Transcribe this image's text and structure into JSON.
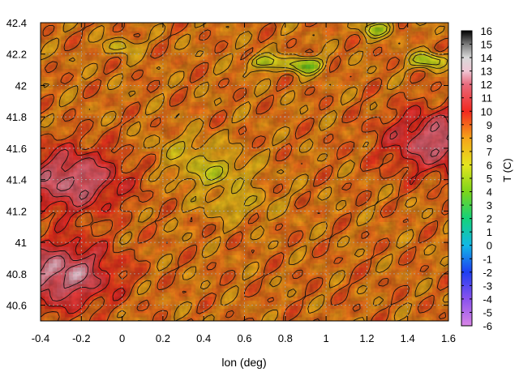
{
  "chart_data": {
    "type": "heatmap",
    "title": "",
    "xlabel": "lon (deg)",
    "ylabel": "",
    "xlim": [
      -0.4,
      1.6
    ],
    "ylim": [
      40.5,
      42.4
    ],
    "x_ticks": [
      "-0.4",
      "-0.2",
      "0",
      "0.2",
      "0.4",
      "0.6",
      "0.8",
      "1",
      "1.2",
      "1.4",
      "1.6"
    ],
    "x_tick_values": [
      -0.4,
      -0.2,
      0,
      0.2,
      0.4,
      0.6,
      0.8,
      1.0,
      1.2,
      1.4,
      1.6
    ],
    "y_ticks": [
      "40.6",
      "40.8",
      "41",
      "41.2",
      "41.4",
      "41.6",
      "41.8",
      "42",
      "42.2",
      "42.4"
    ],
    "y_tick_values": [
      40.6,
      40.8,
      41.0,
      41.2,
      41.4,
      41.6,
      41.8,
      42.0,
      42.2,
      42.4
    ],
    "grid": true,
    "colorbar": {
      "label": "T (C)",
      "range": [
        -6,
        16
      ],
      "ticks": [
        "16",
        "15",
        "14",
        "13",
        "12",
        "11",
        "10",
        "9",
        "8",
        "7",
        "6",
        "5",
        "4",
        "3",
        "2",
        "1",
        "0",
        "-1",
        "-2",
        "-3",
        "-4",
        "-5",
        "-6"
      ],
      "tick_values": [
        16,
        15,
        14,
        13,
        12,
        11,
        10,
        9,
        8,
        7,
        6,
        5,
        4,
        3,
        2,
        1,
        0,
        -1,
        -2,
        -3,
        -4,
        -5,
        -6
      ],
      "colors": [
        {
          "value": -6,
          "color": "#d985e6"
        },
        {
          "value": -4,
          "color": "#8a52ee"
        },
        {
          "value": -2,
          "color": "#1e3ef2"
        },
        {
          "value": 0,
          "color": "#12b8e6"
        },
        {
          "value": 2,
          "color": "#14d27a"
        },
        {
          "value": 4,
          "color": "#7cd51a"
        },
        {
          "value": 6,
          "color": "#e5e51e"
        },
        {
          "value": 8,
          "color": "#f6a319"
        },
        {
          "value": 10,
          "color": "#f2281f"
        },
        {
          "value": 12,
          "color": "#e86a7c"
        },
        {
          "value": 13,
          "color": "#efc6d4"
        },
        {
          "value": 14,
          "color": "#d9d9d9"
        },
        {
          "value": 15,
          "color": "#7a7a7a"
        },
        {
          "value": 16,
          "color": "#000000"
        }
      ]
    },
    "field": {
      "background_c": 8.5,
      "features": [
        {
          "kind": "warm-sea",
          "lon": 1.1,
          "lat": 40.75,
          "c": 8.6
        },
        {
          "kind": "warm-inland",
          "lon": -0.3,
          "lat": 40.8,
          "c": 12.6
        },
        {
          "kind": "warm-inland",
          "lon": -0.25,
          "lat": 41.4,
          "c": 12.2
        },
        {
          "kind": "warm-inland",
          "lon": 1.55,
          "lat": 41.65,
          "c": 12.0
        },
        {
          "kind": "valley",
          "lon": 0.45,
          "lat": 41.45,
          "c": 6.2
        },
        {
          "kind": "valley",
          "lon": 0.32,
          "lat": 41.6,
          "c": 7.2
        },
        {
          "kind": "valley",
          "lon": 0.55,
          "lat": 41.25,
          "c": 7.0
        },
        {
          "kind": "peak",
          "lon": 0.9,
          "lat": 42.13,
          "c": 3.6
        },
        {
          "kind": "peak",
          "lon": 0.7,
          "lat": 42.15,
          "c": 5.0
        },
        {
          "kind": "peak",
          "lon": 0.0,
          "lat": 42.25,
          "c": 6.5
        },
        {
          "kind": "peak",
          "lon": 1.5,
          "lat": 42.16,
          "c": 4.5
        },
        {
          "kind": "peak",
          "lon": 1.25,
          "lat": 42.36,
          "c": 5.2
        }
      ]
    }
  }
}
